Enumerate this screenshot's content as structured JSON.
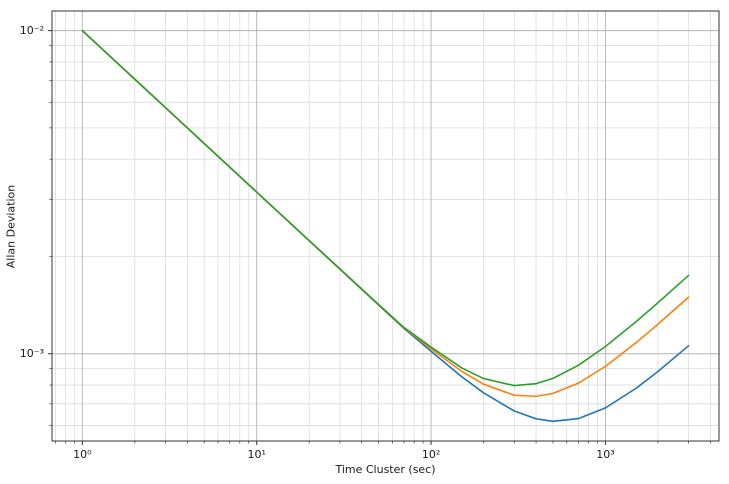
{
  "chart_data": {
    "type": "line",
    "title": "",
    "xlabel": "Time Cluster (sec)",
    "ylabel": "Allan Deviation",
    "x_scale": "log",
    "y_scale": "log",
    "grid": "both",
    "legend": "none",
    "xlim": [
      0.67,
      4480
    ],
    "ylim": [
      0.000537,
      0.0115
    ],
    "x_major_ticks": [
      1,
      10,
      100,
      1000
    ],
    "x_tick_labels": [
      "10⁰",
      "10¹",
      "10²",
      "10³"
    ],
    "y_major_ticks": [
      0.01,
      0.001
    ],
    "y_tick_labels": [
      "10⁻²",
      "10⁻³"
    ],
    "x": [
      1,
      1.5,
      2,
      3,
      5,
      7,
      10,
      15,
      20,
      30,
      50,
      70,
      100,
      150,
      200,
      300,
      400,
      500,
      700,
      1000,
      1500,
      2000,
      3000
    ],
    "series": [
      {
        "color": "#1f77b4",
        "values": [
          0.01,
          0.008165,
          0.007071,
          0.005774,
          0.004472,
          0.00378,
          0.003163,
          0.002583,
          0.002237,
          0.001827,
          0.001415,
          0.001197,
          0.001018,
          0.000849,
          0.000757,
          0.000665,
          0.000629,
          0.000618,
          0.00063,
          0.00068,
          0.000782,
          0.000881,
          0.001059
        ]
      },
      {
        "color": "#ff7f0e",
        "values": [
          0.01,
          0.008165,
          0.007072,
          0.005774,
          0.004473,
          0.003781,
          0.003164,
          0.002584,
          0.002238,
          0.001829,
          0.001418,
          0.001201,
          0.001036,
          0.000882,
          0.000805,
          0.000744,
          0.000738,
          0.000754,
          0.000811,
          0.000914,
          0.001082,
          0.001234,
          0.001497
        ]
      },
      {
        "color": "#2ca02c",
        "values": [
          0.01,
          0.008166,
          0.007072,
          0.005775,
          0.004473,
          0.003781,
          0.003164,
          0.002585,
          0.00224,
          0.001831,
          0.001421,
          0.001205,
          0.001049,
          0.000904,
          0.000838,
          0.000797,
          0.000808,
          0.000839,
          0.000921,
          0.001053,
          0.001257,
          0.001438,
          0.001749
        ]
      }
    ],
    "style": {
      "major_grid_color": "#b3b3b3",
      "minor_grid_color": "#dcdcdc",
      "spine_color": "#333333",
      "background": "#ffffff"
    }
  }
}
